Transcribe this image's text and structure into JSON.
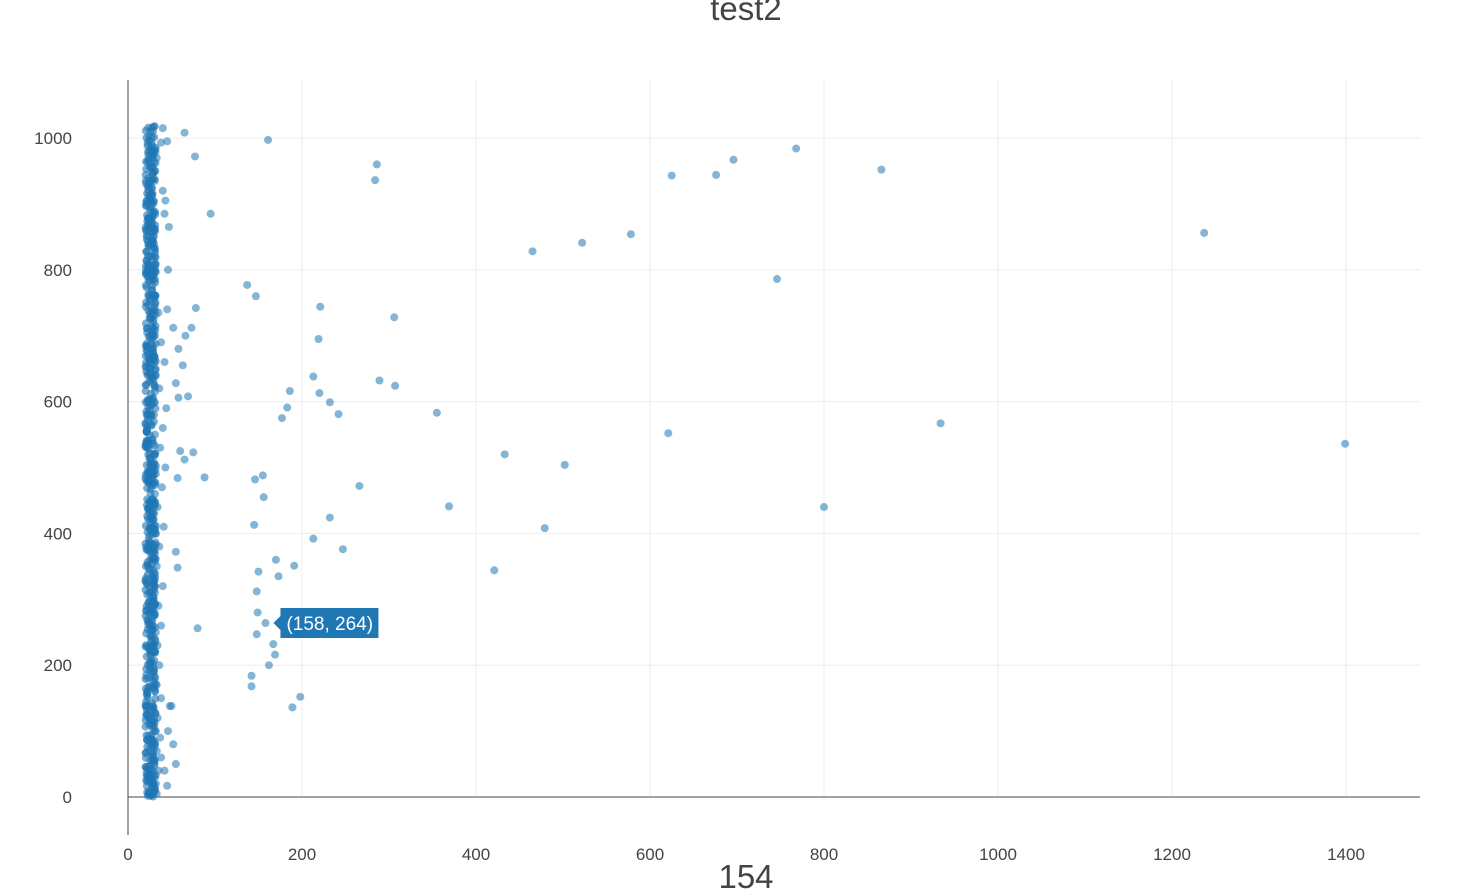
{
  "chart_data": {
    "type": "scatter",
    "title": "test2",
    "xlabel": "154",
    "ylabel": "",
    "xlim": [
      0,
      1485
    ],
    "ylim": [
      0,
      1090
    ],
    "x_ticks": [
      0,
      200,
      400,
      600,
      800,
      1000,
      1200,
      1400
    ],
    "y_ticks": [
      0,
      200,
      400,
      600,
      800,
      1000
    ],
    "grid": true,
    "marker_color": "#1f77b4",
    "hover_label": "(158, 264)",
    "hover_point": [
      158,
      264
    ],
    "series": [
      {
        "points": [
          [
            161,
            997
          ],
          [
            65,
            1008
          ],
          [
            77,
            972
          ],
          [
            95,
            885
          ],
          [
            137,
            777
          ],
          [
            147,
            760
          ],
          [
            78,
            742
          ],
          [
            221,
            744
          ],
          [
            306,
            728
          ],
          [
            219,
            695
          ],
          [
            213,
            638
          ],
          [
            289,
            632
          ],
          [
            307,
            624
          ],
          [
            186,
            616
          ],
          [
            220,
            613
          ],
          [
            232,
            599
          ],
          [
            183,
            591
          ],
          [
            242,
            581
          ],
          [
            177,
            575
          ],
          [
            355,
            583
          ],
          [
            621,
            552
          ],
          [
            433,
            520
          ],
          [
            502,
            504
          ],
          [
            934,
            567
          ],
          [
            1399,
            536
          ],
          [
            155,
            488
          ],
          [
            146,
            482
          ],
          [
            266,
            472
          ],
          [
            156,
            455
          ],
          [
            369,
            441
          ],
          [
            479,
            408
          ],
          [
            145,
            413
          ],
          [
            232,
            424
          ],
          [
            213,
            392
          ],
          [
            247,
            376
          ],
          [
            170,
            360
          ],
          [
            191,
            351
          ],
          [
            150,
            342
          ],
          [
            173,
            335
          ],
          [
            421,
            344
          ],
          [
            800,
            440
          ],
          [
            148,
            312
          ],
          [
            149,
            280
          ],
          [
            158,
            264
          ],
          [
            148,
            247
          ],
          [
            167,
            232
          ],
          [
            169,
            216
          ],
          [
            162,
            200
          ],
          [
            142,
            184
          ],
          [
            142,
            168
          ],
          [
            198,
            152
          ],
          [
            189,
            136
          ],
          [
            80,
            256
          ],
          [
            88,
            485
          ],
          [
            75,
            523
          ],
          [
            69,
            608
          ],
          [
            465,
            828
          ],
          [
            522,
            841
          ],
          [
            578,
            854
          ],
          [
            625,
            943
          ],
          [
            676,
            944
          ],
          [
            696,
            967
          ],
          [
            768,
            984
          ],
          [
            866,
            952
          ],
          [
            1237,
            856
          ],
          [
            746,
            786
          ],
          [
            286,
            960
          ],
          [
            284,
            936
          ],
          [
            40,
            1015
          ],
          [
            45,
            995
          ],
          [
            38,
            993
          ],
          [
            33,
            970
          ],
          [
            40,
            920
          ],
          [
            43,
            905
          ],
          [
            42,
            885
          ],
          [
            47,
            865
          ],
          [
            46,
            800
          ],
          [
            45,
            740
          ],
          [
            52,
            712
          ],
          [
            73,
            712
          ],
          [
            66,
            700
          ],
          [
            58,
            680
          ],
          [
            63,
            655
          ],
          [
            55,
            628
          ],
          [
            58,
            606
          ],
          [
            60,
            525
          ],
          [
            65,
            512
          ],
          [
            57,
            484
          ],
          [
            55,
            372
          ],
          [
            57,
            348
          ],
          [
            48,
            138
          ],
          [
            52,
            80
          ],
          [
            55,
            50
          ],
          [
            45,
            17
          ],
          [
            42,
            40
          ],
          [
            38,
            60
          ],
          [
            46,
            100
          ],
          [
            50,
            138
          ],
          [
            35,
            735
          ],
          [
            38,
            690
          ],
          [
            42,
            660
          ],
          [
            36,
            620
          ],
          [
            44,
            590
          ],
          [
            40,
            560
          ],
          [
            37,
            530
          ],
          [
            43,
            500
          ],
          [
            39,
            470
          ],
          [
            34,
            440
          ],
          [
            41,
            410
          ],
          [
            36,
            380
          ],
          [
            33,
            350
          ],
          [
            40,
            320
          ],
          [
            35,
            290
          ],
          [
            38,
            260
          ],
          [
            34,
            230
          ],
          [
            36,
            200
          ],
          [
            33,
            170
          ],
          [
            38,
            150
          ],
          [
            34,
            120
          ],
          [
            37,
            90
          ],
          [
            33,
            70
          ],
          [
            35,
            40
          ],
          [
            32,
            20
          ],
          [
            33,
            5
          ],
          [
            30,
            980
          ],
          [
            31,
            950
          ],
          [
            29,
            900
          ],
          [
            30,
            860
          ],
          [
            31,
            830
          ],
          [
            28,
            790
          ],
          [
            30,
            760
          ],
          [
            29,
            720
          ],
          [
            31,
            700
          ],
          [
            30,
            670
          ],
          [
            32,
            640
          ],
          [
            31,
            615
          ],
          [
            30,
            580
          ],
          [
            31,
            550
          ],
          [
            30,
            520
          ],
          [
            32,
            490
          ],
          [
            31,
            460
          ],
          [
            30,
            430
          ],
          [
            32,
            400
          ],
          [
            31,
            370
          ],
          [
            30,
            340
          ],
          [
            31,
            310
          ],
          [
            30,
            280
          ],
          [
            32,
            250
          ],
          [
            31,
            220
          ],
          [
            30,
            190
          ],
          [
            31,
            160
          ],
          [
            30,
            130
          ],
          [
            32,
            100
          ],
          [
            31,
            80
          ],
          [
            30,
            55
          ],
          [
            31,
            30
          ],
          [
            30,
            10
          ]
        ],
        "dense_band": {
          "x_min": 20,
          "x_max": 32,
          "y_min": 0,
          "y_max": 1020,
          "count": 700
        }
      }
    ]
  }
}
